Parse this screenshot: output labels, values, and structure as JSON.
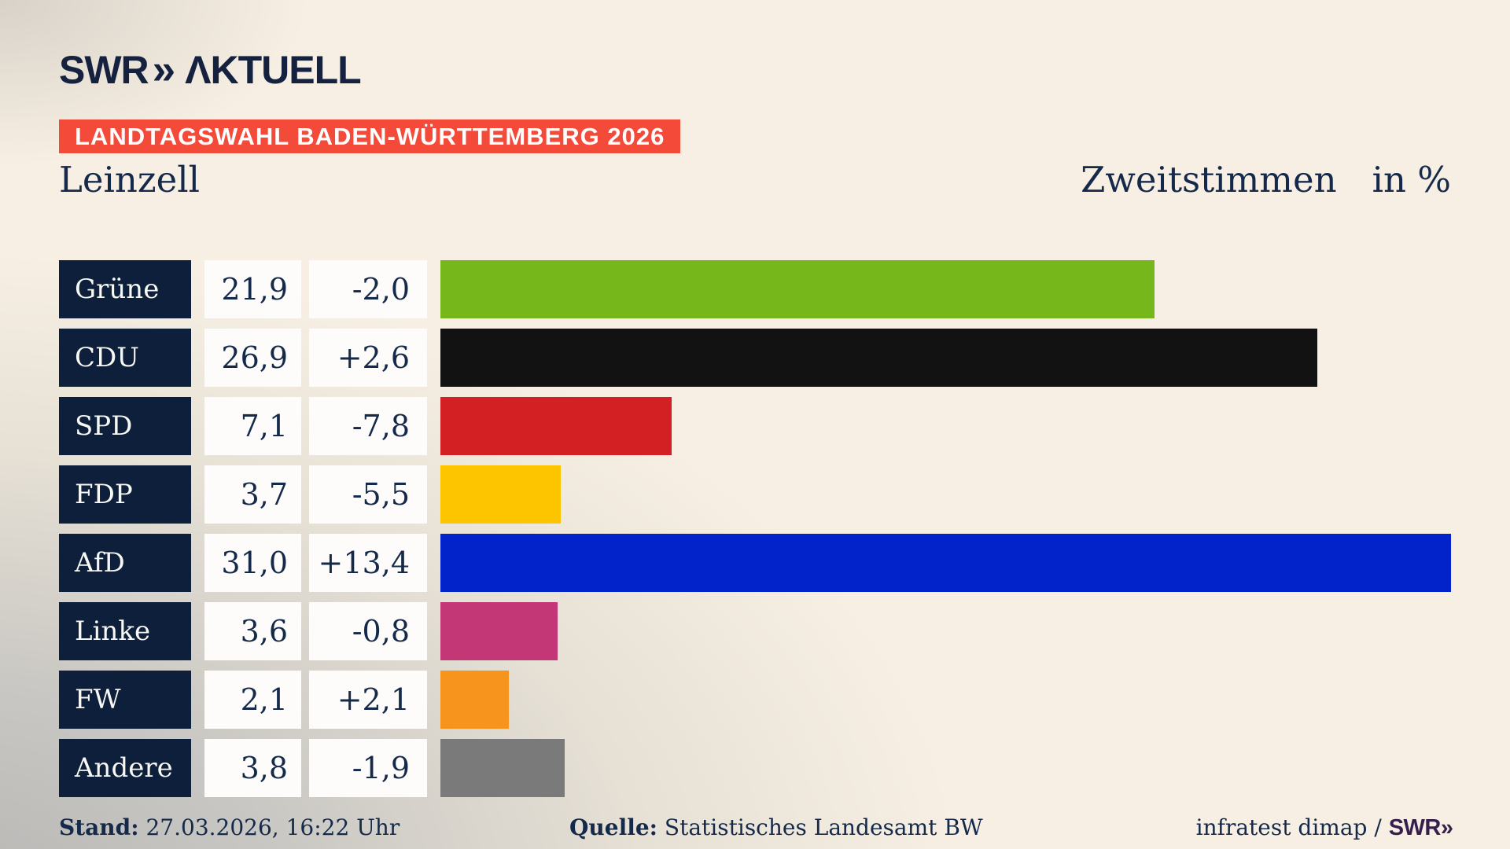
{
  "logo": {
    "brand": "SWR",
    "chevrons": "»",
    "suffix": "ΛKTUELL"
  },
  "banner": {
    "label": "LANDTAGSWAHL BADEN-WÜRTTEMBERG 2026",
    "bg_color": "#f44a3a",
    "text_color": "#ffffff"
  },
  "header": {
    "municipality": "Leinzell",
    "measure": "Zweitstimmen",
    "unit": "in %"
  },
  "chart_data": {
    "type": "bar",
    "orientation": "horizontal",
    "title": "Landtagswahl Baden-Württemberg 2026 – Leinzell – Zweitstimmen in %",
    "xlim": [
      0,
      31.0
    ],
    "grid": false,
    "legend": false,
    "categories": [
      "Grüne",
      "CDU",
      "SPD",
      "FDP",
      "AfD",
      "Linke",
      "FW",
      "Andere"
    ],
    "values": [
      21.9,
      26.9,
      7.1,
      3.7,
      31.0,
      3.6,
      2.1,
      3.8
    ],
    "display_values": [
      "21,9",
      "26,9",
      "7,1",
      "3,7",
      "31,0",
      "3,6",
      "2,1",
      "3,8"
    ],
    "changes": [
      "-2,0",
      "+2,6",
      "-7,8",
      "-5,5",
      "+13,4",
      "-0,8",
      "+2,1",
      "-1,9"
    ],
    "bar_colors": [
      "#76b81c",
      "#121212",
      "#d32023",
      "#fdc500",
      "#0123c9",
      "#c43776",
      "#f7941d",
      "#7a7a7a"
    ],
    "label_box_color": "#0e1f3c",
    "value_box_color": "#fdfcfa"
  },
  "footer": {
    "stand_label": "Stand:",
    "stand_value": "27.03.2026, 16:22 Uhr",
    "quelle_label": "Quelle:",
    "quelle_value": "Statistisches Landesamt BW",
    "credit": "infratest dimap /",
    "brand": "SWR",
    "brand_chevrons": "»"
  }
}
